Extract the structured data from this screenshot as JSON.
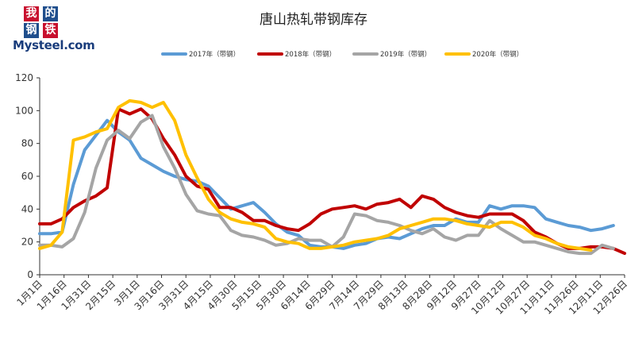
{
  "logo": {
    "chars": [
      "我",
      "的",
      "钢",
      "铁"
    ],
    "brand": "Mysteel.com"
  },
  "colors": {
    "2017": "#5b9bd5",
    "2018": "#c00000",
    "2019": "#a5a5a5",
    "2020": "#ffc000"
  },
  "chart_data": {
    "type": "line",
    "title": "唐山热轧带钢库存",
    "xlabel": "",
    "ylabel": "",
    "ylim": [
      0,
      120
    ],
    "yticks": [
      0,
      20,
      40,
      60,
      80,
      100,
      120
    ],
    "grid": false,
    "legend": "top",
    "categories": [
      "1月1日",
      "1月16日",
      "1月31日",
      "2月15日",
      "3月1日",
      "3月16日",
      "3月31日",
      "4月15日",
      "4月30日",
      "5月15日",
      "5月30日",
      "6月14日",
      "6月29日",
      "7月14日",
      "7月29日",
      "8月13日",
      "8月28日",
      "9月12日",
      "9月27日",
      "10月12日",
      "10月27日",
      "11月11日",
      "11月26日",
      "12月11日",
      "12月26日"
    ],
    "x_range": [
      1,
      53
    ],
    "series": [
      {
        "name": "2017年（带钢）",
        "color": "#5b9bd5",
        "x": [
          1,
          2,
          3,
          4,
          5,
          6,
          7,
          8,
          9,
          10,
          11,
          12,
          13,
          14,
          15,
          16,
          17,
          18,
          19,
          20,
          21,
          22,
          23,
          24,
          25,
          26,
          27,
          28,
          29,
          30,
          31,
          32,
          33,
          34,
          35,
          36,
          37,
          38,
          39,
          40,
          41,
          42,
          43,
          44,
          45,
          46,
          47,
          48,
          49,
          50,
          51,
          52
        ],
        "values": [
          25,
          25,
          26,
          55,
          76,
          85,
          94,
          87,
          82,
          71,
          67,
          63,
          60,
          58,
          57,
          54,
          47,
          40,
          42,
          44,
          38,
          31,
          26,
          24,
          18,
          17,
          17,
          16,
          18,
          19,
          22,
          23,
          22,
          25,
          28,
          30,
          30,
          34,
          32,
          32,
          42,
          40,
          42,
          42,
          41,
          34,
          32,
          30,
          29,
          27,
          28,
          30
        ]
      },
      {
        "name": "2018年（带钢）",
        "color": "#c00000",
        "x": [
          1,
          2,
          3,
          4,
          5,
          6,
          7,
          8,
          9,
          10,
          11,
          12,
          13,
          14,
          15,
          16,
          17,
          18,
          19,
          20,
          21,
          22,
          23,
          24,
          25,
          26,
          27,
          28,
          29,
          30,
          31,
          32,
          33,
          34,
          35,
          36,
          37,
          38,
          39,
          40,
          41,
          42,
          43,
          44,
          45,
          46,
          47,
          48,
          49,
          50,
          51,
          52,
          53
        ],
        "values": [
          31,
          31,
          34,
          41,
          45,
          48,
          53,
          101,
          98,
          101,
          95,
          83,
          73,
          60,
          54,
          52,
          41,
          41,
          38,
          33,
          33,
          30,
          28,
          27,
          31,
          37,
          40,
          41,
          42,
          40,
          43,
          44,
          46,
          41,
          48,
          46,
          41,
          38,
          36,
          35,
          37,
          37,
          37,
          33,
          26,
          23,
          19,
          16,
          16,
          17,
          17,
          16,
          13
        ]
      },
      {
        "name": "2019年（带钢）",
        "color": "#a5a5a5",
        "x": [
          1,
          2,
          3,
          4,
          5,
          6,
          7,
          8,
          9,
          10,
          11,
          12,
          13,
          14,
          15,
          16,
          17,
          18,
          19,
          20,
          21,
          22,
          23,
          24,
          25,
          26,
          27,
          28,
          29,
          30,
          31,
          32,
          33,
          34,
          35,
          36,
          37,
          38,
          39,
          40,
          41,
          42,
          43,
          44,
          45,
          46,
          47,
          48,
          49,
          50,
          51,
          52
        ],
        "values": [
          18,
          18,
          17,
          22,
          38,
          65,
          82,
          88,
          83,
          93,
          97,
          78,
          65,
          49,
          39,
          37,
          36,
          27,
          24,
          23,
          21,
          18,
          19,
          22,
          21,
          21,
          17,
          23,
          37,
          36,
          33,
          32,
          30,
          27,
          25,
          28,
          23,
          21,
          24,
          24,
          33,
          28,
          24,
          20,
          20,
          18,
          16,
          14,
          13,
          13,
          18,
          16
        ]
      },
      {
        "name": "2020年（带钢）",
        "color": "#ffc000",
        "x": [
          1,
          2,
          3,
          4,
          5,
          6,
          7,
          8,
          9,
          10,
          11,
          12,
          13,
          14,
          15,
          16,
          17,
          18,
          19,
          20,
          21,
          22,
          23,
          24,
          25,
          26,
          27,
          28,
          29,
          30,
          31,
          32,
          33,
          34,
          35,
          36,
          37,
          38,
          39,
          40,
          41,
          42,
          43,
          44,
          45,
          46,
          47,
          48,
          49,
          50
        ],
        "values": [
          16,
          18,
          26,
          82,
          84,
          87,
          89,
          102,
          106,
          105,
          102,
          105,
          94,
          73,
          59,
          46,
          38,
          34,
          32,
          31,
          29,
          22,
          20,
          19,
          16,
          16,
          17,
          18,
          20,
          21,
          22,
          24,
          28,
          30,
          32,
          34,
          34,
          33,
          31,
          30,
          29,
          32,
          32,
          29,
          24,
          22,
          19,
          17,
          16,
          15
        ]
      }
    ]
  }
}
